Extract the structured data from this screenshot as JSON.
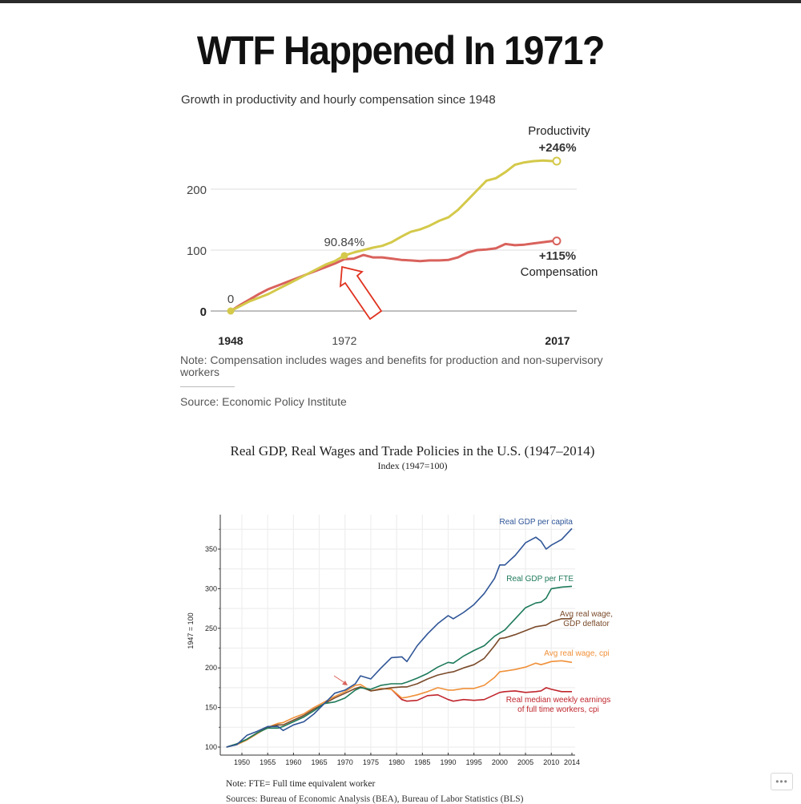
{
  "page": {
    "title": "WTF Happened In 1971?",
    "more_button_label": "•••",
    "colors": {
      "title": "#111111",
      "topbar": "#2b2b2b"
    }
  },
  "chart_data": [
    {
      "type": "line",
      "title": "Growth in productivity and hourly compensation since 1948",
      "xlabel": "",
      "ylabel": "",
      "xlim": [
        1948,
        2017
      ],
      "ylim": [
        0,
        250
      ],
      "y_ticks": [
        "0",
        "100",
        "200"
      ],
      "x_ticks": [
        {
          "label": "1948",
          "value": 1948,
          "bold": true
        },
        {
          "label": "1972",
          "value": 1972,
          "bold": false
        },
        {
          "label": "2017",
          "value": 2017,
          "bold": true
        }
      ],
      "grid": true,
      "x": [
        1948,
        1950,
        1952,
        1954,
        1956,
        1958,
        1960,
        1962,
        1964,
        1966,
        1968,
        1970,
        1972,
        1974,
        1976,
        1978,
        1980,
        1982,
        1984,
        1986,
        1988,
        1990,
        1992,
        1994,
        1996,
        1998,
        2000,
        2002,
        2004,
        2006,
        2008,
        2010,
        2012,
        2014,
        2016,
        2017
      ],
      "series": [
        {
          "name": "Productivity",
          "color": "#d4c94a",
          "values": [
            0,
            8,
            16,
            22,
            28,
            36,
            44,
            52,
            60,
            68,
            76,
            82,
            91,
            96,
            100,
            104,
            107,
            113,
            122,
            130,
            134,
            140,
            148,
            154,
            166,
            182,
            198,
            214,
            218,
            228,
            240,
            244,
            246,
            247,
            246,
            246
          ]
        },
        {
          "name": "Compensation",
          "color": "#d9625c",
          "values": [
            0,
            10,
            19,
            28,
            36,
            42,
            48,
            54,
            60,
            66,
            72,
            78,
            85,
            86,
            92,
            88,
            88,
            86,
            84,
            83,
            82,
            83,
            83,
            84,
            88,
            96,
            100,
            101,
            103,
            110,
            108,
            109,
            111,
            113,
            115,
            115
          ]
        }
      ],
      "annotations": [
        {
          "text": "0",
          "x": 1948,
          "y": 0
        },
        {
          "text": "90.84%",
          "x": 1972,
          "y": 90.84
        },
        {
          "text": "Productivity",
          "x": 2017,
          "y": 246
        },
        {
          "text": "+246%",
          "x": 2017,
          "y": 246
        },
        {
          "text": "+115%",
          "x": 2017,
          "y": 115
        },
        {
          "text": "Compensation",
          "x": 2017,
          "y": 115
        }
      ],
      "arrow_annotation": {
        "points_to_year": 1972,
        "color": "#e0321f"
      },
      "note": "Note: Compensation includes wages and benefits for production and non-supervisory workers",
      "source": "Source: Economic Policy Institute"
    },
    {
      "type": "line",
      "title": "Real GDP, Real Wages and Trade Policies in the U.S. (1947–2014)",
      "subtitle": "Index (1947=100)",
      "ylabel": "1947 = 100",
      "xlabel": "",
      "xlim": [
        1947,
        2014
      ],
      "ylim": [
        95,
        390
      ],
      "y_ticks": [
        "100",
        "150",
        "200",
        "250",
        "300",
        "350"
      ],
      "x_ticks": [
        "1950",
        "1955",
        "1960",
        "1965",
        "1970",
        "1975",
        "1980",
        "1985",
        "1990",
        "1995",
        "2000",
        "2005",
        "2010",
        "2014"
      ],
      "grid": true,
      "x": [
        1947,
        1949,
        1951,
        1953,
        1955,
        1957,
        1958,
        1960,
        1962,
        1964,
        1966,
        1968,
        1970,
        1972,
        1973,
        1975,
        1977,
        1979,
        1981,
        1982,
        1984,
        1986,
        1988,
        1990,
        1991,
        1993,
        1995,
        1997,
        1999,
        2000,
        2001,
        2003,
        2005,
        2007,
        2008,
        2009,
        2010,
        2012,
        2014
      ],
      "series": [
        {
          "name": "Real GDP per capita",
          "label_lines": [
            "Real GDP per capita"
          ],
          "color": "#2f5597",
          "values": [
            100,
            103,
            115,
            120,
            126,
            126,
            121,
            128,
            132,
            142,
            155,
            168,
            172,
            180,
            190,
            186,
            200,
            213,
            214,
            208,
            228,
            243,
            256,
            266,
            262,
            270,
            280,
            294,
            313,
            330,
            330,
            342,
            358,
            365,
            360,
            350,
            355,
            362,
            376
          ]
        },
        {
          "name": "Real GDP per FTE",
          "label_lines": [
            "Real GDP per FTE"
          ],
          "color": "#1e7a5a",
          "values": [
            100,
            104,
            110,
            118,
            124,
            124,
            126,
            132,
            138,
            146,
            155,
            157,
            162,
            172,
            175,
            173,
            178,
            180,
            180,
            182,
            187,
            193,
            201,
            207,
            206,
            215,
            222,
            228,
            240,
            244,
            248,
            262,
            276,
            282,
            283,
            288,
            300,
            302,
            303
          ]
        },
        {
          "name": "Avg real wage, GDP deflator",
          "label_lines": [
            "Avg real wage,",
            "GDP deflator"
          ],
          "color": "#7a4a2a",
          "values": [
            100,
            104,
            110,
            118,
            125,
            128,
            128,
            134,
            140,
            148,
            155,
            162,
            168,
            174,
            176,
            171,
            173,
            175,
            176,
            176,
            180,
            186,
            191,
            194,
            195,
            200,
            204,
            212,
            228,
            237,
            238,
            242,
            247,
            252,
            253,
            254,
            258,
            262,
            262
          ]
        },
        {
          "name": "Avg real wage, cpi",
          "label_lines": [
            "Avg real wage, cpi"
          ],
          "color": "#f0913a",
          "values": [
            100,
            103,
            109,
            117,
            125,
            130,
            131,
            137,
            142,
            150,
            157,
            164,
            170,
            178,
            179,
            171,
            174,
            173,
            162,
            163,
            166,
            170,
            175,
            172,
            172,
            174,
            174,
            178,
            188,
            195,
            196,
            198,
            201,
            206,
            204,
            206,
            208,
            209,
            207
          ]
        },
        {
          "name": "Real median weekly earnings of full time workers, cpi",
          "label_lines": [
            "Real median weekly earnings",
            "of full time workers, cpi"
          ],
          "color": "#c0262d",
          "values": [
            null,
            null,
            null,
            null,
            null,
            null,
            null,
            null,
            null,
            null,
            null,
            null,
            null,
            null,
            null,
            null,
            null,
            173,
            160,
            158,
            159,
            165,
            166,
            160,
            158,
            160,
            159,
            160,
            166,
            169,
            170,
            171,
            169,
            170,
            171,
            175,
            173,
            170,
            170
          ]
        }
      ],
      "arrow_annotation": {
        "points_to_year": 1971,
        "color": "#d9625c"
      },
      "note": "Note: FTE= Full time equivalent worker",
      "source": "Sources: Bureau of Economic Analysis (BEA), Bureau of Labor Statistics (BLS)"
    }
  ]
}
